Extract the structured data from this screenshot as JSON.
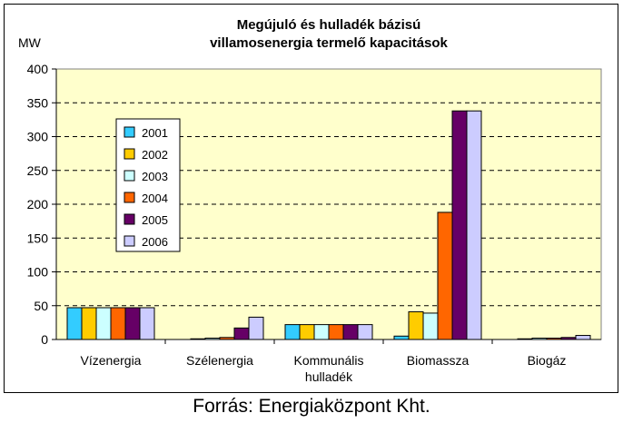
{
  "source": "Forrás: Energiaközpont Kht.",
  "chart_data": {
    "type": "bar",
    "title": "Megújuló és hulladék bázisú villamosenergia termelő kapacitások",
    "title_lines": [
      "Megújuló és hulladék bázisú",
      "villamosenergia termelő kapacitások"
    ],
    "ylabel": "MW",
    "xlabel": "",
    "ylim": [
      0,
      400
    ],
    "yticks": [
      0,
      50,
      100,
      150,
      200,
      250,
      300,
      350,
      400
    ],
    "grid": "dashed horizontal",
    "legend_position": "left",
    "categories": [
      [
        "Vízenergia"
      ],
      [
        "Szélenergia"
      ],
      [
        "Kommunális",
        "hulladék"
      ],
      [
        "Biomassza"
      ],
      [
        "Biogáz"
      ]
    ],
    "series": [
      {
        "name": "2001",
        "color": "#33CCFF",
        "values": [
          47,
          0,
          22,
          5,
          0
        ]
      },
      {
        "name": "2002",
        "color": "#FFCC00",
        "values": [
          47,
          1,
          22,
          41,
          1
        ]
      },
      {
        "name": "2003",
        "color": "#CCFFFF",
        "values": [
          47,
          2,
          22,
          39,
          2
        ]
      },
      {
        "name": "2004",
        "color": "#FF6600",
        "values": [
          47,
          3,
          22,
          188,
          2
        ]
      },
      {
        "name": "2005",
        "color": "#660066",
        "values": [
          47,
          17,
          22,
          338,
          3
        ]
      },
      {
        "name": "2006",
        "color": "#CCCCFF",
        "values": [
          47,
          33,
          22,
          338,
          6
        ]
      }
    ],
    "plot_background": "#FFFFCC"
  }
}
